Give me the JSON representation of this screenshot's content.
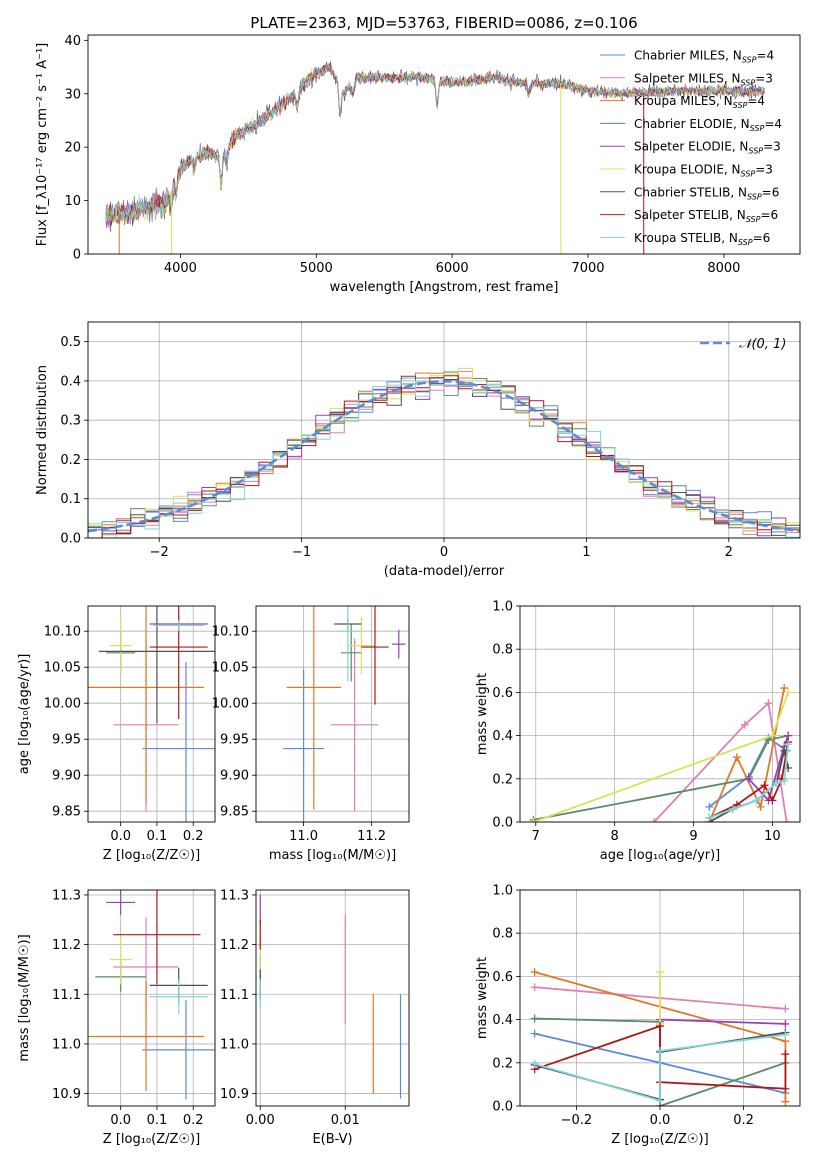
{
  "title": "PLATE=2363, MJD=53763, FIBERID=0086, z=0.106",
  "colors": {
    "Chabrier MILES": "#5b8bd9",
    "Salpeter MILES": "#e07fb5",
    "Kroupa MILES": "#e0782a",
    "Chabrier ELODIE": "#5a8a68",
    "Salpeter ELODIE": "#9b3fbf",
    "Kroupa ELODIE": "#d4e35a",
    "Chabrier STELIB": "#505050",
    "Salpeter STELIB": "#b01818",
    "Kroupa STELIB": "#7fd6d6"
  },
  "chart_data": [
    {
      "id": "spectrum",
      "type": "line",
      "title": "PLATE=2363, MJD=53763, FIBERID=0086, z=0.106",
      "xlabel": "wavelength [Angstrom, rest frame]",
      "ylabel": "Flux [f_λ10⁻¹⁷ erg cm⁻² s⁻¹ A⁻¹]",
      "xlim": [
        3320,
        8560
      ],
      "ylim": [
        0,
        41
      ],
      "xticks": [
        4000,
        5000,
        6000,
        7000,
        8000
      ],
      "yticks": [
        0,
        10,
        20,
        30,
        40
      ],
      "legend_position": "top-right",
      "legend": [
        {
          "model": "Chabrier MILES",
          "label": "Chabrier MILES, N_SSP=4"
        },
        {
          "model": "Salpeter MILES",
          "label": "Salpeter MILES, N_SSP=3"
        },
        {
          "model": "Kroupa MILES",
          "label": "Kroupa MILES, N_SSP=4"
        },
        {
          "model": "Chabrier ELODIE",
          "label": "Chabrier ELODIE, N_SSP=4"
        },
        {
          "model": "Salpeter ELODIE",
          "label": "Salpeter ELODIE, N_SSP=3"
        },
        {
          "model": "Kroupa ELODIE",
          "label": "Kroupa ELODIE, N_SSP=3"
        },
        {
          "model": "Chabrier STELIB",
          "label": "Chabrier STELIB, N_SSP=6"
        },
        {
          "model": "Salpeter STELIB",
          "label": "Salpeter STELIB, N_SSP=6"
        },
        {
          "model": "Kroupa STELIB",
          "label": "Kroupa STELIB, N_SSP=6"
        }
      ],
      "continuum": [
        [
          3450,
          7
        ],
        [
          3650,
          8
        ],
        [
          3800,
          9
        ],
        [
          3900,
          10
        ],
        [
          4000,
          16
        ],
        [
          4100,
          18
        ],
        [
          4200,
          19
        ],
        [
          4300,
          18
        ],
        [
          4400,
          22
        ],
        [
          4600,
          25
        ],
        [
          4800,
          29
        ],
        [
          5000,
          34
        ],
        [
          5100,
          35
        ],
        [
          5200,
          30
        ],
        [
          5300,
          33
        ],
        [
          5500,
          33
        ],
        [
          5800,
          33
        ],
        [
          6000,
          32
        ],
        [
          6300,
          33
        ],
        [
          6500,
          32
        ],
        [
          6800,
          32
        ],
        [
          7000,
          30.5
        ],
        [
          7300,
          30
        ],
        [
          7600,
          30.5
        ],
        [
          8000,
          30.5
        ],
        [
          8300,
          30.5
        ]
      ],
      "absorption_lines": [
        [
          3933,
          3
        ],
        [
          3968,
          3
        ],
        [
          4101,
          2
        ],
        [
          4300,
          5
        ],
        [
          4340,
          3
        ],
        [
          4861,
          3
        ],
        [
          5175,
          5
        ],
        [
          5270,
          2
        ],
        [
          5890,
          5
        ],
        [
          6563,
          2
        ]
      ],
      "spikes": [
        [
          3550,
          "Kroupa MILES"
        ],
        [
          3935,
          "Kroupa ELODIE"
        ],
        [
          6800,
          "Kroupa ELODIE"
        ],
        [
          7410,
          "Salpeter STELIB"
        ]
      ]
    },
    {
      "id": "residuals",
      "type": "step",
      "xlabel": "(data-model)/error",
      "ylabel": "Normed distribution",
      "xlim": [
        -2.5,
        2.5
      ],
      "ylim": [
        0,
        0.55
      ],
      "xticks": [
        -2,
        -1,
        0,
        1,
        2
      ],
      "yticks": [
        0.0,
        0.1,
        0.2,
        0.3,
        0.4,
        0.5
      ],
      "grid": true,
      "legend_position": "top-right",
      "legend_label": "𝒩(0, 1)",
      "bin_width": 0.1
    },
    {
      "id": "age-vs-Z",
      "type": "errorbar",
      "xlabel": "Z [log₁₀(Z/Z☉)]",
      "ylabel": "age  [log₁₀(age/yr)]",
      "xlim": [
        -0.09,
        0.26
      ],
      "ylim": [
        9.835,
        10.135
      ],
      "xticks": [
        0.0,
        0.1,
        0.2
      ],
      "yticks": [
        9.85,
        9.9,
        9.95,
        10.0,
        10.05,
        10.1
      ],
      "grid": true,
      "points": [
        {
          "model": "Chabrier MILES",
          "x": 0.18,
          "xerr": 0.12,
          "y": 9.937,
          "yerr": 0.12
        },
        {
          "model": "Salpeter MILES",
          "x": 0.07,
          "xerr": 0.09,
          "y": 9.97,
          "yerr": 0.12
        },
        {
          "model": "Kroupa MILES",
          "x": 0.07,
          "xerr": 0.16,
          "y": 10.022,
          "yerr": 0.16
        },
        {
          "model": "Chabrier ELODIE",
          "x": 0.0,
          "xerr": 0.04,
          "y": 10.07,
          "yerr": 0.03
        },
        {
          "model": "Salpeter ELODIE",
          "x": 0.16,
          "xerr": 0.08,
          "y": 10.11,
          "yerr": 0.01
        },
        {
          "model": "Kroupa ELODIE",
          "x": 0.0,
          "xerr": 0.03,
          "y": 10.08,
          "yerr": 0.04
        },
        {
          "model": "Chabrier STELIB",
          "x": 0.1,
          "xerr": 0.16,
          "y": 10.072,
          "yerr": 0.1
        },
        {
          "model": "Salpeter STELIB",
          "x": 0.16,
          "xerr": 0.08,
          "y": 10.078,
          "yerr": 0.1
        },
        {
          "model": "Kroupa STELIB",
          "x": 0.16,
          "xerr": 0.07,
          "y": 10.108,
          "yerr": 0.008
        }
      ]
    },
    {
      "id": "age-vs-mass",
      "type": "errorbar",
      "xlabel": "mass [log₁₀(M/M☉)]",
      "ylabel": "",
      "xlim": [
        10.86,
        11.31
      ],
      "ylim": [
        9.835,
        10.135
      ],
      "xticks": [
        11.0,
        11.2
      ],
      "yticks": [
        9.85,
        9.9,
        9.95,
        10.0,
        10.05,
        10.1
      ],
      "grid": true,
      "points": [
        {
          "model": "Chabrier MILES",
          "x": 11.0,
          "xerr": 0.06,
          "y": 9.937,
          "yerr": 0.11
        },
        {
          "model": "Salpeter MILES",
          "x": 11.15,
          "xerr": 0.07,
          "y": 9.97,
          "yerr": 0.12
        },
        {
          "model": "Kroupa MILES",
          "x": 11.03,
          "xerr": 0.08,
          "y": 10.022,
          "yerr": 0.17
        },
        {
          "model": "Chabrier ELODIE",
          "x": 11.14,
          "xerr": 0.03,
          "y": 10.07,
          "yerr": 0.04
        },
        {
          "model": "Salpeter ELODIE",
          "x": 11.28,
          "xerr": 0.02,
          "y": 10.082,
          "yerr": 0.02
        },
        {
          "model": "Kroupa ELODIE",
          "x": 11.17,
          "xerr": 0.04,
          "y": 10.08,
          "yerr": 0.04
        },
        {
          "model": "Chabrier STELIB",
          "x": 11.13,
          "xerr": 0.04,
          "y": 10.11,
          "yerr": 0.008
        },
        {
          "model": "Salpeter STELIB",
          "x": 11.21,
          "xerr": 0.04,
          "y": 10.078,
          "yerr": 0.08
        },
        {
          "model": "Kroupa STELIB",
          "x": 11.13,
          "xerr": 0.03,
          "y": 10.1,
          "yerr": 0.07
        }
      ]
    },
    {
      "id": "mass-vs-Z",
      "type": "errorbar",
      "xlabel": "Z [log₁₀(Z/Z☉)]",
      "ylabel": "mass [log₁₀(M/M☉)]",
      "xlim": [
        -0.09,
        0.26
      ],
      "ylim": [
        10.875,
        11.31
      ],
      "xticks": [
        0.0,
        0.1,
        0.2
      ],
      "yticks": [
        10.9,
        11.0,
        11.1,
        11.2,
        11.3
      ],
      "grid": true,
      "points": [
        {
          "model": "Chabrier MILES",
          "x": 0.18,
          "xerr": 0.12,
          "y": 10.988,
          "yerr": 0.1
        },
        {
          "model": "Salpeter MILES",
          "x": 0.07,
          "xerr": 0.09,
          "y": 11.155,
          "yerr": 0.1
        },
        {
          "model": "Kroupa MILES",
          "x": 0.07,
          "xerr": 0.16,
          "y": 11.015,
          "yerr": 0.11
        },
        {
          "model": "Chabrier ELODIE",
          "x": 0.0,
          "xerr": 0.07,
          "y": 11.135,
          "yerr": 0.03
        },
        {
          "model": "Salpeter ELODIE",
          "x": 0.0,
          "xerr": 0.04,
          "y": 11.285,
          "yerr": 0.025
        },
        {
          "model": "Kroupa ELODIE",
          "x": 0.0,
          "xerr": 0.03,
          "y": 11.17,
          "yerr": 0.05
        },
        {
          "model": "Chabrier STELIB",
          "x": 0.16,
          "xerr": 0.08,
          "y": 11.118,
          "yerr": 0.035
        },
        {
          "model": "Salpeter STELIB",
          "x": 0.1,
          "xerr": 0.12,
          "y": 11.22,
          "yerr": 0.1
        },
        {
          "model": "Kroupa STELIB",
          "x": 0.16,
          "xerr": 0.08,
          "y": 11.095,
          "yerr": 0.035
        }
      ]
    },
    {
      "id": "mass-vs-ebv",
      "type": "errorbar",
      "xlabel": "E(B-V)",
      "ylabel": "",
      "xlim": [
        -0.0005,
        0.0175
      ],
      "ylim": [
        10.875,
        11.31
      ],
      "xticks": [
        0.0,
        0.01
      ],
      "yticks": [
        10.9,
        11.0,
        11.1,
        11.2,
        11.3
      ],
      "grid": true,
      "points": [
        {
          "model": "Chabrier MILES",
          "x": 0.0165,
          "xerr": 0,
          "y": 10.995,
          "yerr": 0.105
        },
        {
          "model": "Salpeter MILES",
          "x": 0.01,
          "xerr": 0,
          "y": 11.15,
          "yerr": 0.11
        },
        {
          "model": "Kroupa MILES",
          "x": 0.0133,
          "xerr": 0,
          "y": 11.0,
          "yerr": 0.1
        },
        {
          "model": "Chabrier ELODIE",
          "x": 0.0,
          "xerr": 0,
          "y": 11.14,
          "yerr": 0.04
        },
        {
          "model": "Salpeter ELODIE",
          "x": 0.0,
          "xerr": 0,
          "y": 11.27,
          "yerr": 0.03
        },
        {
          "model": "Kroupa ELODIE",
          "x": 0.0,
          "xerr": 0,
          "y": 11.17,
          "yerr": 0.04
        },
        {
          "model": "Chabrier STELIB",
          "x": 0.0,
          "xerr": 0,
          "y": 11.12,
          "yerr": 0.03
        },
        {
          "model": "Salpeter STELIB",
          "x": 0.0,
          "xerr": 0,
          "y": 11.22,
          "yerr": 0.03
        },
        {
          "model": "Kroupa STELIB",
          "x": 0.0,
          "xerr": 0,
          "y": 11.1,
          "yerr": 0.03
        }
      ]
    },
    {
      "id": "weight-vs-age",
      "type": "line",
      "marker": "+",
      "xlabel": "age  [log₁₀(age/yr)]",
      "ylabel": "mass weight",
      "xlim": [
        6.8,
        10.35
      ],
      "ylim": [
        0,
        1.0
      ],
      "xticks": [
        7,
        8,
        9,
        10
      ],
      "yticks": [
        0.0,
        0.2,
        0.4,
        0.6,
        0.8,
        1.0
      ],
      "grid": true,
      "series": [
        {
          "model": "Chabrier MILES",
          "x": [
            9.2,
            9.7,
            9.95,
            10.18
          ],
          "y": [
            0.07,
            0.21,
            0.39,
            0.33
          ]
        },
        {
          "model": "Salpeter MILES",
          "x": [
            8.5,
            9.65,
            9.95,
            10.18
          ],
          "y": [
            0.0,
            0.45,
            0.55,
            0.0
          ]
        },
        {
          "model": "Kroupa MILES",
          "x": [
            9.2,
            9.55,
            9.85,
            10.15
          ],
          "y": [
            0.0,
            0.3,
            0.07,
            0.62
          ]
        },
        {
          "model": "Chabrier ELODIE",
          "x": [
            6.97,
            9.7,
            9.95,
            10.2
          ],
          "y": [
            0.01,
            0.2,
            0.38,
            0.4
          ]
        },
        {
          "model": "Salpeter ELODIE",
          "x": [
            9.7,
            9.95,
            10.15,
            10.2
          ],
          "y": [
            0.2,
            0.1,
            0.35,
            0.4
          ]
        },
        {
          "model": "Kroupa ELODIE",
          "x": [
            6.97,
            10.0,
            10.2
          ],
          "y": [
            0.0,
            0.4,
            0.6
          ]
        },
        {
          "model": "Chabrier STELIB",
          "x": [
            9.2,
            9.5,
            9.8,
            10.05,
            10.15,
            10.2
          ],
          "y": [
            0.0,
            0.06,
            0.1,
            0.18,
            0.33,
            0.25
          ]
        },
        {
          "model": "Salpeter STELIB",
          "x": [
            9.2,
            9.55,
            9.9,
            10.0,
            10.12,
            10.2
          ],
          "y": [
            0.02,
            0.08,
            0.17,
            0.1,
            0.2,
            0.37
          ]
        },
        {
          "model": "Kroupa STELIB",
          "x": [
            9.2,
            9.5,
            9.8,
            10.05,
            10.15,
            10.2
          ],
          "y": [
            0.02,
            0.06,
            0.1,
            0.18,
            0.19,
            0.36
          ]
        }
      ]
    },
    {
      "id": "weight-vs-Z",
      "type": "line",
      "marker": "+",
      "xlabel": "Z [log₁₀(Z/Z☉)]",
      "ylabel": "mass weight",
      "xlim": [
        -0.335,
        0.335
      ],
      "ylim": [
        0,
        1.0
      ],
      "xticks": [
        -0.2,
        0.0,
        0.2
      ],
      "yticks": [
        0.0,
        0.2,
        0.4,
        0.6,
        0.8,
        1.0
      ],
      "grid": true,
      "series": [
        {
          "model": "Chabrier MILES",
          "x": [
            -0.3,
            0.0,
            0.3
          ],
          "y": [
            0.335,
            0.2,
            0.06
          ]
        },
        {
          "model": "Salpeter MILES",
          "x": [
            -0.3,
            0.3
          ],
          "y": [
            0.55,
            0.45
          ]
        },
        {
          "model": "Kroupa MILES",
          "x": [
            -0.3,
            0.3,
            0.3
          ],
          "y": [
            0.62,
            0.3,
            0.02
          ]
        },
        {
          "model": "Chabrier ELODIE",
          "x": [
            -0.3,
            0.0,
            0.0,
            0.3
          ],
          "y": [
            0.405,
            0.39,
            0.0,
            0.2
          ]
        },
        {
          "model": "Salpeter ELODIE",
          "x": [
            0.0,
            0.0,
            0.3
          ],
          "y": [
            0.0,
            0.4,
            0.38
          ]
        },
        {
          "model": "Kroupa ELODIE",
          "x": [
            0.0,
            0.0
          ],
          "y": [
            0.62,
            0.38
          ]
        },
        {
          "model": "Chabrier STELIB",
          "x": [
            -0.3,
            0.0,
            0.0,
            0.3
          ],
          "y": [
            0.19,
            0.03,
            0.25,
            0.34
          ]
        },
        {
          "model": "Salpeter STELIB",
          "x": [
            -0.3,
            0.0,
            0.0,
            0.3,
            0.3
          ],
          "y": [
            0.17,
            0.37,
            0.11,
            0.08,
            0.24
          ]
        },
        {
          "model": "Kroupa STELIB",
          "x": [
            -0.3,
            0.0,
            0.0,
            0.3
          ],
          "y": [
            0.195,
            0.025,
            0.255,
            0.33
          ]
        }
      ]
    }
  ]
}
